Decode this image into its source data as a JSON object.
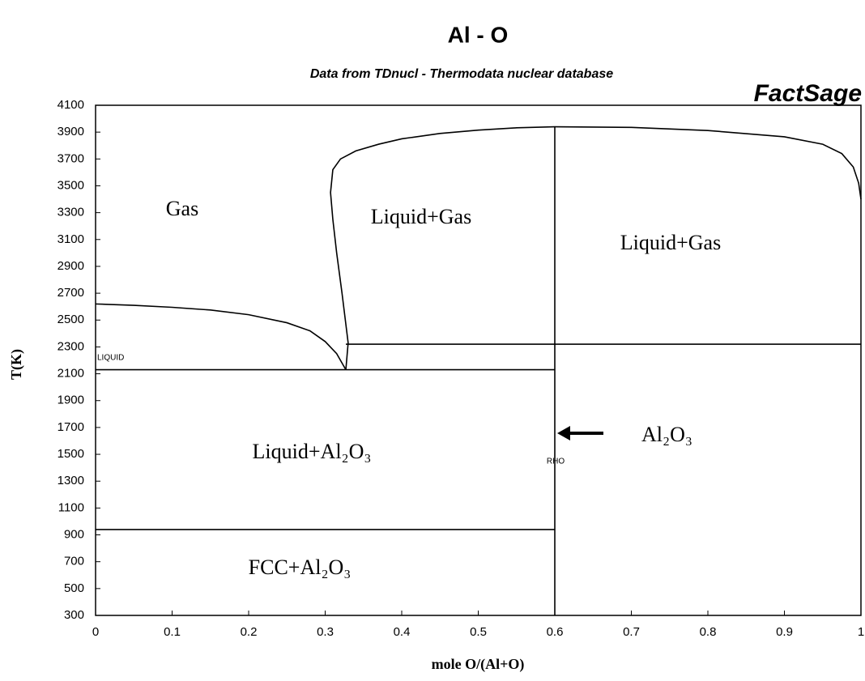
{
  "chart_data": {
    "type": "line",
    "title": "Al - O",
    "subtitle": "Data from TDnucl - Thermodata nuclear database",
    "brand": "FactSage",
    "x_label": "mole O/(Al+O)",
    "y_label": "T(K)",
    "xlim": [
      0,
      1
    ],
    "xticks": [
      0,
      0.1,
      0.2,
      0.3,
      0.4,
      0.5,
      0.6,
      0.7,
      0.8,
      0.9,
      1
    ],
    "ylim": [
      300,
      4100
    ],
    "yticks": [
      300,
      500,
      700,
      900,
      1100,
      1300,
      1500,
      1700,
      1900,
      2100,
      2300,
      2500,
      2700,
      2900,
      3100,
      3300,
      3500,
      3700,
      3900,
      4100
    ],
    "grid": false,
    "color": "#000000",
    "series": [
      {
        "x": [
          0,
          0.05,
          0.1,
          0.15,
          0.2,
          0.25,
          0.28,
          0.3,
          0.315,
          0.327
        ],
        "values": [
          2620,
          2610,
          2595,
          2575,
          2540,
          2480,
          2420,
          2340,
          2250,
          2130
        ]
      },
      {
        "x": [
          0.327,
          0.33,
          0.322,
          0.315,
          0.31,
          0.307,
          0.31,
          0.32,
          0.34,
          0.37,
          0.4,
          0.45,
          0.5,
          0.55,
          0.6
        ],
        "values": [
          2130,
          2330,
          2700,
          3000,
          3250,
          3450,
          3620,
          3700,
          3760,
          3810,
          3850,
          3890,
          3915,
          3932,
          3940
        ]
      },
      {
        "x": [
          0.6,
          0.7,
          0.8,
          0.9,
          0.95,
          0.975,
          0.99,
          0.997,
          1
        ],
        "values": [
          3940,
          3935,
          3912,
          3865,
          3810,
          3740,
          3640,
          3520,
          3400
        ]
      },
      {
        "x": [
          0,
          0.327,
          0.6
        ],
        "values": [
          2130,
          2130,
          2130
        ]
      },
      {
        "x": [
          0.327,
          0.6,
          1
        ],
        "values": [
          2320,
          2320,
          2320
        ]
      },
      {
        "x": [
          0,
          0.6
        ],
        "values": [
          940,
          940
        ]
      },
      {
        "x": [
          0.6,
          0.6
        ],
        "values": [
          300,
          3940
        ]
      }
    ],
    "annotations": [
      "Gas",
      "Liquid+Gas",
      "Liquid+Gas",
      "Liquid+Al₂O₃",
      "FCC+Al₂O₃",
      "Al₂O₃",
      "LIQUID",
      "RHO"
    ]
  }
}
